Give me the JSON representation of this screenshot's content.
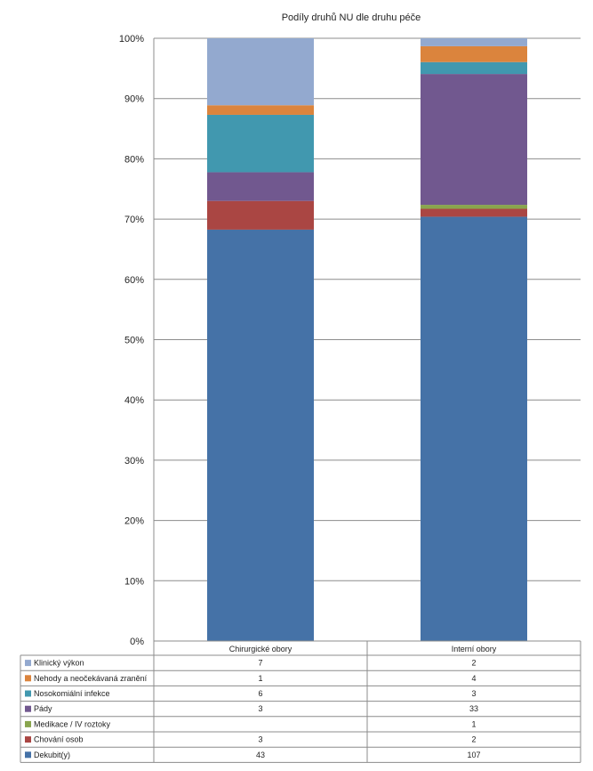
{
  "chart_data": {
    "type": "bar",
    "stacked": true,
    "normalized": true,
    "title": "Podíly druhů NU dle druhu péče",
    "categories": [
      "Chirurgické obory",
      "Interní obory"
    ],
    "yticks": [
      "0%",
      "10%",
      "20%",
      "30%",
      "40%",
      "50%",
      "60%",
      "70%",
      "80%",
      "90%",
      "100%"
    ],
    "ylim": [
      0,
      100
    ],
    "grid": true,
    "data_table": true,
    "series": [
      {
        "name": "Dekubit(y)",
        "color": "#4572A7",
        "values": [
          43,
          107
        ],
        "labels": [
          "43",
          "107"
        ]
      },
      {
        "name": "Chování osob",
        "color": "#AA4643",
        "values": [
          3,
          2
        ],
        "labels": [
          "3",
          "2"
        ]
      },
      {
        "name": "Medikace / IV roztoky",
        "color": "#89A54E",
        "values": [
          0,
          1
        ],
        "labels": [
          "",
          "1"
        ]
      },
      {
        "name": "Pády",
        "color": "#71588F",
        "values": [
          3,
          33
        ],
        "labels": [
          "3",
          "33"
        ]
      },
      {
        "name": "Nosokomiální infekce",
        "color": "#4198AF",
        "values": [
          6,
          3
        ],
        "labels": [
          "6",
          "3"
        ]
      },
      {
        "name": "Nehody a neočekávaná zranění",
        "color": "#DB843D",
        "values": [
          1,
          4
        ],
        "labels": [
          "1",
          "4"
        ]
      },
      {
        "name": "Klinický výkon",
        "color": "#93A9CF",
        "values": [
          7,
          2
        ],
        "labels": [
          "7",
          "2"
        ]
      }
    ]
  }
}
